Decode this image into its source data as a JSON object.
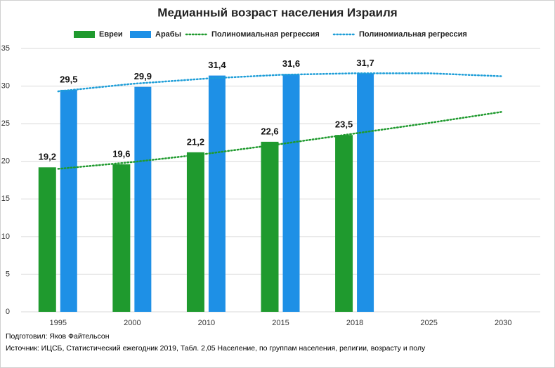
{
  "chart_data": {
    "type": "bar",
    "title": "Медианный возраст населения Израиля",
    "categories": [
      "1995",
      "2000",
      "2010",
      "2015",
      "2018",
      "2025",
      "2030"
    ],
    "series": [
      {
        "name": "Евреи",
        "type": "bar",
        "color": "#1f9a2e",
        "values": [
          19.2,
          19.6,
          21.2,
          22.6,
          23.5,
          null,
          null
        ],
        "value_labels": [
          "19,2",
          "19,6",
          "21,2",
          "22,6",
          "23,5",
          null,
          null
        ]
      },
      {
        "name": "Арабы",
        "type": "bar",
        "color": "#1e90e6",
        "values": [
          29.5,
          29.9,
          31.4,
          31.6,
          31.7,
          null,
          null
        ],
        "value_labels": [
          "29,5",
          "29,9",
          "31,4",
          "31,6",
          "31,7",
          null,
          null
        ]
      },
      {
        "name": "Полиномиальная регрессия",
        "type": "line",
        "color": "#1f9a2e",
        "values": [
          19.0,
          19.9,
          21.0,
          22.3,
          23.7,
          25.1,
          26.6
        ]
      },
      {
        "name": "Полиномиальная регрессия",
        "type": "line",
        "color": "#1e9ed8",
        "values": [
          29.3,
          30.3,
          31.0,
          31.5,
          31.7,
          31.7,
          31.3
        ]
      }
    ],
    "ylim": [
      0,
      35
    ],
    "yticks": [
      0,
      5,
      10,
      15,
      20,
      25,
      30,
      35
    ],
    "grid": true,
    "legend": "top",
    "notes": [
      "Подготовил: Яков Файтельсон",
      "Источник: ИЦСБ, Статистический ежегодник 2019, Табл. 2,05 Население, по группам населения, религии, возрасту и полу"
    ]
  }
}
